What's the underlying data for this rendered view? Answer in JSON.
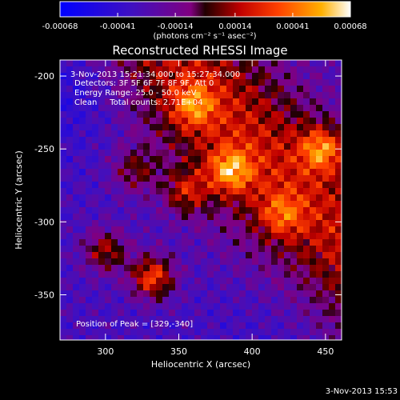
{
  "chart_data": {
    "type": "heatmap",
    "title": "Reconstructed RHESSI Image",
    "xlabel": "Heliocentric X (arcsec)",
    "ylabel": "Heliocentric Y (arcsec)",
    "xlim": [
      269,
      461
    ],
    "ylim": [
      -381,
      -189
    ],
    "x_ticks": [
      "300",
      "350",
      "400",
      "450"
    ],
    "x_tick_values": [
      300,
      350,
      400,
      450
    ],
    "y_ticks": [
      "-200",
      "-250",
      "-300",
      "-350"
    ],
    "y_tick_values": [
      -200,
      -250,
      -300,
      -350
    ],
    "colorbar": {
      "range": [
        -0.00068,
        0.00068
      ],
      "tick_labels": [
        "-0.00068",
        "-0.00041",
        "-0.00014",
        "0.00014",
        "0.00041",
        "0.00068"
      ],
      "tick_values": [
        -0.00068,
        -0.00041,
        -0.00014,
        0.00014,
        0.00041,
        0.00068
      ],
      "label": "(photons cm⁻² s⁻¹ asec⁻²)",
      "colors": [
        "#0000ff",
        "#4010c0",
        "#800080",
        "#200000",
        "#c00000",
        "#ff4000",
        "#ffb000",
        "#ffffff"
      ]
    },
    "annotations": {
      "time_range": "3-Nov-2013 15:21:34.000 to 15:27:34.000",
      "detectors": "Detectors: 3F 5F 6F 7F 8F 9F, Att 0",
      "energy": "Energy Range: 25.0 - 50.0 keV",
      "clean": "Clean     Total counts: 2.71E+04",
      "peak": "Position of Peak = [329,-340]"
    },
    "peak_position": [
      329,
      -340
    ],
    "bright_sources": [
      {
        "x": 332,
        "y": -338,
        "w": 1.0
      },
      {
        "x": 300,
        "y": -320,
        "w": 0.7
      },
      {
        "x": 385,
        "y": -265,
        "w": 0.8
      },
      {
        "x": 448,
        "y": -250,
        "w": 0.8
      },
      {
        "x": 360,
        "y": -220,
        "w": 0.6
      },
      {
        "x": 355,
        "y": -280,
        "w": 0.6
      },
      {
        "x": 420,
        "y": -295,
        "w": 0.5
      },
      {
        "x": 320,
        "y": -265,
        "w": 0.5
      }
    ],
    "footer_timestamp": "3-Nov-2013 15:53"
  }
}
